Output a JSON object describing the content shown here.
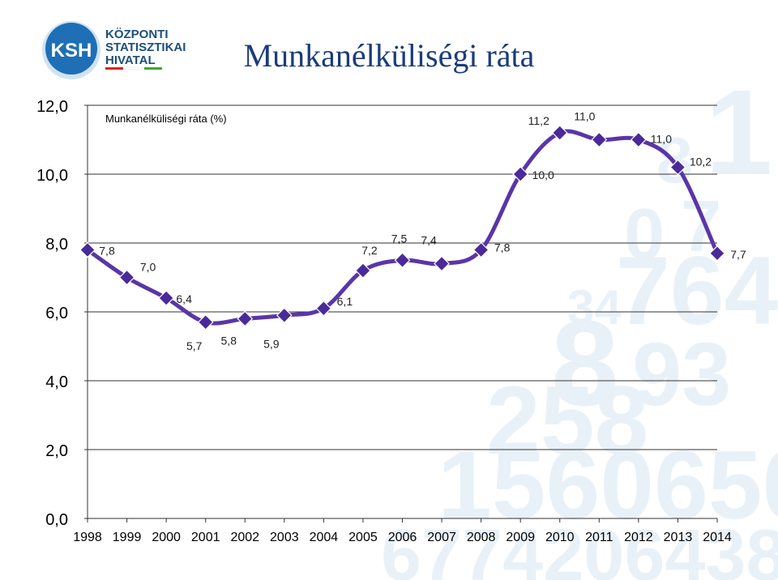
{
  "logo": {
    "abbr": "KSH",
    "line1": "KÖZPONTI",
    "line2": "STATISZTIKAI",
    "line3": "HIVATAL"
  },
  "header": {
    "title": "Munkanélküliségi ráta"
  },
  "colors": {
    "title": "#1a3c7a",
    "line": "#5a35a8",
    "marker": "#4a2a9a",
    "accent_red": "#d9251d",
    "accent_green": "#3aa935",
    "logo_blue": "#1f6fb6"
  },
  "chart_data": {
    "type": "line",
    "title": "Munkanélküliségi ráta (%)",
    "xlabel": "",
    "ylabel": "",
    "categories": [
      "1998",
      "1999",
      "2000",
      "2001",
      "2002",
      "2003",
      "2004",
      "2005",
      "2006",
      "2007",
      "2008",
      "2009",
      "2010",
      "2011",
      "2012",
      "2013",
      "2014"
    ],
    "series": [
      {
        "values": [
          7.8,
          7.0,
          6.4,
          5.7,
          5.8,
          5.9,
          6.1,
          7.2,
          7.5,
          7.4,
          7.8,
          10.0,
          11.2,
          11.0,
          11.0,
          10.2,
          7.7
        ],
        "labels": [
          "7,8",
          "7,0",
          "6,4",
          "5,7",
          "5,8",
          "5,9",
          "6,1",
          "7,2",
          "7,5",
          "7,4",
          "7,8",
          "10,0",
          "11,2",
          "11,0",
          "11,0",
          "10,2",
          "7,7"
        ]
      }
    ],
    "ylim": [
      0,
      12
    ],
    "yticks": [
      "0,0",
      "2,0",
      "4,0",
      "6,0",
      "8,0",
      "10,0",
      "12,0"
    ],
    "ytick_values": [
      0,
      2,
      4,
      6,
      8,
      10,
      12
    ],
    "grid": true,
    "smooth": true,
    "marker": "diamond"
  }
}
